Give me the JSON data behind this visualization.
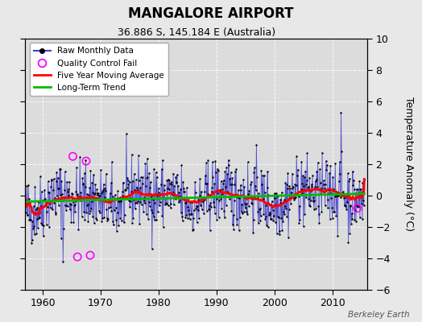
{
  "title": "MANGALORE AIRPORT",
  "subtitle": "36.886 S, 145.184 E (Australia)",
  "ylabel": "Temperature Anomaly (°C)",
  "watermark": "Berkeley Earth",
  "ylim": [
    -6,
    10
  ],
  "xlim": [
    1957,
    2016
  ],
  "xticks": [
    1960,
    1970,
    1980,
    1990,
    2000,
    2010
  ],
  "yticks": [
    -6,
    -4,
    -2,
    0,
    2,
    4,
    6,
    8,
    10
  ],
  "bg_color": "#e8e8e8",
  "plot_bg_color": "#dcdcdc",
  "raw_line_color": "#4444cc",
  "raw_dot_color": "#000000",
  "ma_color": "#ff0000",
  "trend_color": "#00bb00",
  "qc_color": "#ff00ff",
  "seed": 42,
  "start_year": 1957.0,
  "end_year": 2015.5,
  "n_months": 702,
  "trend_slope": 0.013,
  "trend_intercept": -0.12,
  "qc_fail_years": [
    1965.2,
    1966.0,
    1967.5,
    1968.2,
    2014.3
  ],
  "qc_fail_vals": [
    2.5,
    -3.9,
    2.2,
    -3.8,
    -0.8
  ]
}
